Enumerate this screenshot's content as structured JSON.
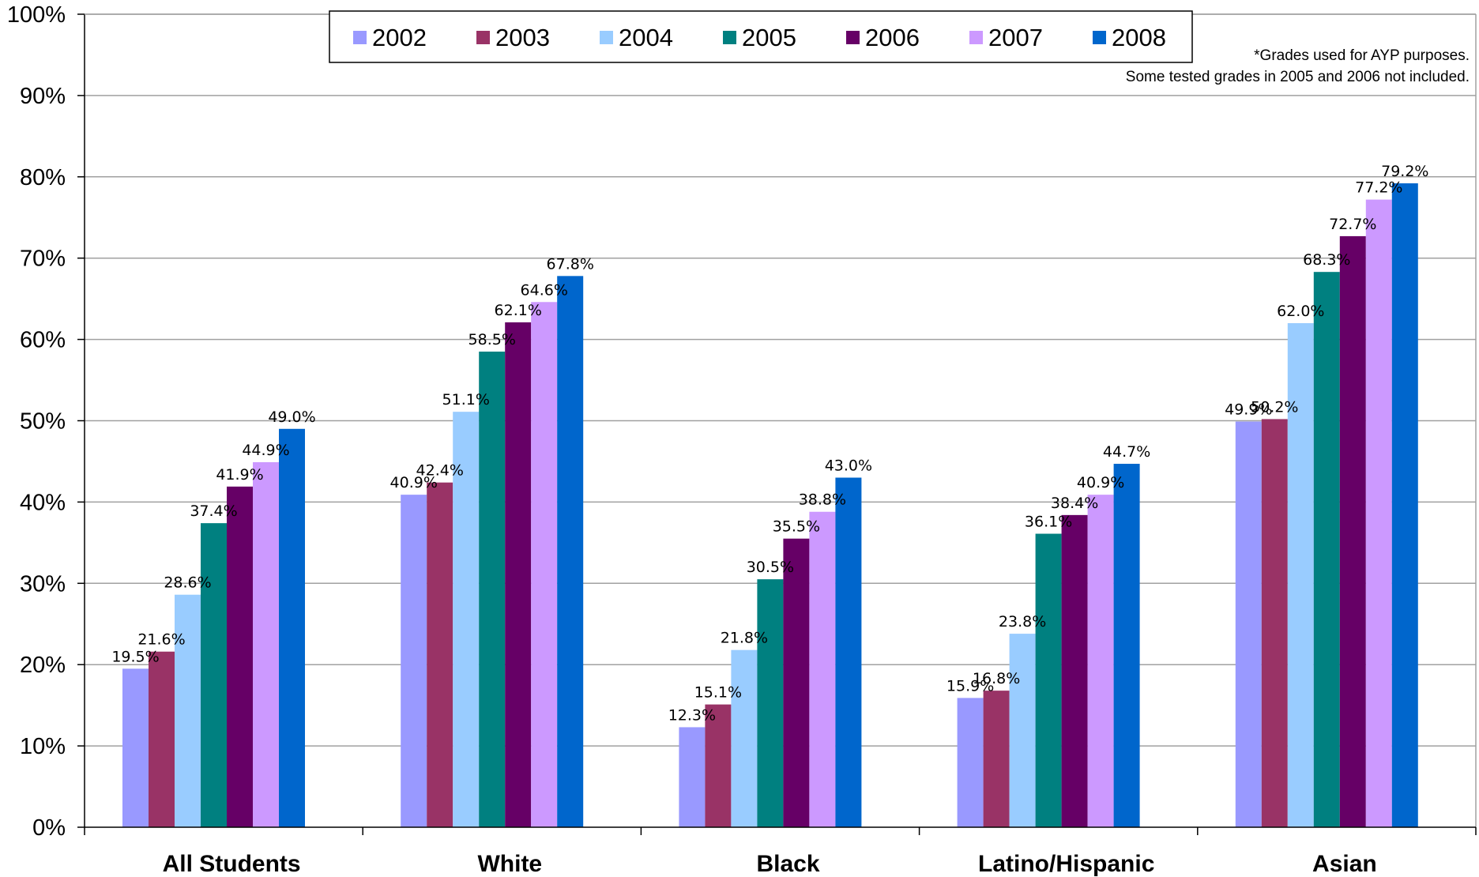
{
  "chart_data": {
    "type": "bar",
    "title": "",
    "xlabel": "",
    "ylabel": "",
    "categories": [
      "All Students",
      "White",
      "Black",
      "Latino/Hispanic",
      "Asian"
    ],
    "ylim": [
      0,
      100
    ],
    "y_ticks": [
      "0%",
      "10%",
      "20%",
      "30%",
      "40%",
      "50%",
      "60%",
      "70%",
      "80%",
      "90%",
      "100%"
    ],
    "grid": true,
    "legend_position": "top",
    "series": [
      {
        "name": "2002",
        "color": "#9999ff",
        "values": [
          19.5,
          40.9,
          12.3,
          15.9,
          49.9
        ],
        "labels": [
          "19.5%",
          "40.9%",
          "12.3%",
          "15.9%",
          "49.9%"
        ]
      },
      {
        "name": "2003",
        "color": "#993366",
        "values": [
          21.6,
          42.4,
          15.1,
          16.8,
          50.2
        ],
        "labels": [
          "21.6%",
          "42.4%",
          "15.1%",
          "16.8%",
          "50.2%"
        ]
      },
      {
        "name": "2004",
        "color": "#99ccff",
        "values": [
          28.6,
          51.1,
          21.8,
          23.8,
          62.0
        ],
        "labels": [
          "28.6%",
          "51.1%",
          "21.8%",
          "23.8%",
          "62.0%"
        ]
      },
      {
        "name": "2005",
        "color": "#008080",
        "values": [
          37.4,
          58.5,
          30.5,
          36.1,
          68.3
        ],
        "labels": [
          "37.4%",
          "58.5%",
          "30.5%",
          "36.1%",
          "68.3%"
        ]
      },
      {
        "name": "2006",
        "color": "#660066",
        "values": [
          41.9,
          62.1,
          35.5,
          38.4,
          72.7
        ],
        "labels": [
          "41.9%",
          "62.1%",
          "35.5%",
          "38.4%",
          "72.7%"
        ]
      },
      {
        "name": "2007",
        "color": "#cc99ff",
        "values": [
          44.9,
          64.6,
          38.8,
          40.9,
          77.2
        ],
        "labels": [
          "44.9%",
          "64.6%",
          "38.8%",
          "40.9%",
          "77.2%"
        ]
      },
      {
        "name": "2008",
        "color": "#0066cc",
        "values": [
          49.0,
          67.8,
          43.0,
          44.7,
          79.2
        ],
        "labels": [
          "49.0%",
          "67.8%",
          "43.0%",
          "44.7%",
          "79.2%"
        ]
      }
    ],
    "annotations": [
      "*Grades used for AYP purposes.",
      "Some tested grades in 2005 and 2006 not included."
    ]
  }
}
